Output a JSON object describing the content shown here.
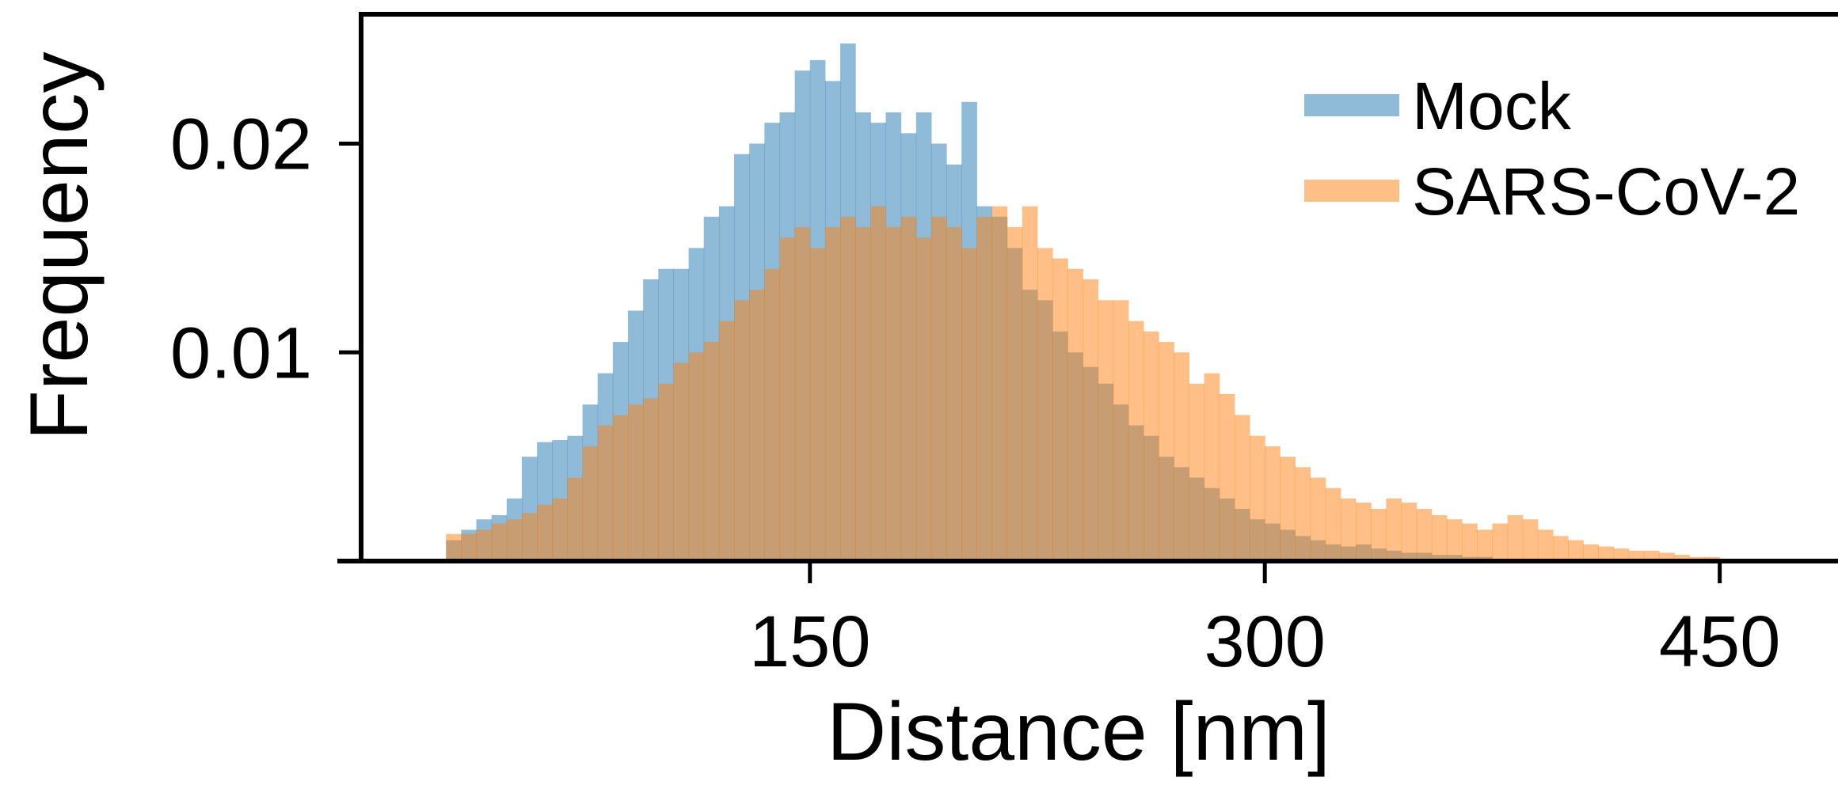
{
  "chart_data": {
    "type": "histogram",
    "xlabel": "Distance [nm]",
    "ylabel": "Frequency",
    "bins": [
      30,
      35,
      40,
      45,
      50,
      55,
      60,
      65,
      70,
      75,
      80,
      85,
      90,
      95,
      100,
      105,
      110,
      115,
      120,
      125,
      130,
      135,
      140,
      145,
      150,
      155,
      160,
      165,
      170,
      175,
      180,
      185,
      190,
      195,
      200,
      205,
      210,
      215,
      220,
      225,
      230,
      235,
      240,
      245,
      250,
      255,
      260,
      265,
      270,
      275,
      280,
      285,
      290,
      295,
      300,
      305,
      310,
      315,
      320,
      325,
      330,
      335,
      340,
      345,
      350,
      355,
      360,
      365,
      370,
      375,
      380,
      385,
      390,
      395,
      400,
      405,
      410,
      415,
      420,
      425,
      430,
      435,
      440,
      445,
      450,
      455,
      460,
      465
    ],
    "series": [
      {
        "name": "Mock",
        "color": "#1f77b4",
        "values": [
          0.001,
          0.0015,
          0.002,
          0.0022,
          0.003,
          0.005,
          0.0057,
          0.0058,
          0.006,
          0.0075,
          0.009,
          0.0105,
          0.012,
          0.0135,
          0.014,
          0.014,
          0.015,
          0.0165,
          0.017,
          0.0195,
          0.02,
          0.021,
          0.0215,
          0.0235,
          0.024,
          0.023,
          0.0248,
          0.0215,
          0.021,
          0.0215,
          0.0205,
          0.0215,
          0.02,
          0.019,
          0.022,
          0.017,
          0.0165,
          0.015,
          0.013,
          0.0125,
          0.011,
          0.01,
          0.0093,
          0.0085,
          0.0075,
          0.0065,
          0.006,
          0.005,
          0.0045,
          0.004,
          0.0035,
          0.003,
          0.0025,
          0.002,
          0.0018,
          0.0015,
          0.0012,
          0.001,
          0.0008,
          0.0007,
          0.0008,
          0.0006,
          0.0005,
          0.0004,
          0.0004,
          0.0003,
          0.0003,
          0.0002,
          0.0002,
          0.0001,
          0.0001,
          0,
          0,
          0,
          0,
          0,
          0,
          0,
          0,
          0,
          0,
          0,
          0,
          0,
          0,
          0,
          0
        ]
      },
      {
        "name": "SARS-CoV-2",
        "color": "#ff7f0e",
        "values": [
          0.0013,
          0.0013,
          0.0015,
          0.0018,
          0.002,
          0.0023,
          0.0027,
          0.003,
          0.004,
          0.0055,
          0.0065,
          0.007,
          0.0075,
          0.0078,
          0.0085,
          0.0095,
          0.01,
          0.0105,
          0.0115,
          0.0125,
          0.013,
          0.014,
          0.0155,
          0.016,
          0.015,
          0.016,
          0.0165,
          0.016,
          0.017,
          0.016,
          0.0165,
          0.0155,
          0.0165,
          0.016,
          0.015,
          0.0165,
          0.017,
          0.016,
          0.017,
          0.015,
          0.0145,
          0.014,
          0.0135,
          0.0125,
          0.0125,
          0.0115,
          0.011,
          0.0105,
          0.01,
          0.0085,
          0.009,
          0.008,
          0.007,
          0.006,
          0.0055,
          0.005,
          0.0045,
          0.004,
          0.0035,
          0.003,
          0.0028,
          0.0025,
          0.003,
          0.0028,
          0.0025,
          0.0022,
          0.002,
          0.0018,
          0.0015,
          0.0018,
          0.0022,
          0.002,
          0.0015,
          0.0012,
          0.001,
          0.0008,
          0.0007,
          0.0006,
          0.0005,
          0.0005,
          0.0004,
          0.0003,
          0.0002,
          0.0002,
          0.0001,
          0.0001,
          0.0001
        ]
      }
    ],
    "alpha": 0.5,
    "xlim": [
      2,
      489
    ],
    "ylim": [
      0,
      0.0262
    ],
    "xticks": [
      150,
      300,
      450
    ],
    "yticks": [
      0.01,
      0.02
    ],
    "legend": "upper right"
  }
}
